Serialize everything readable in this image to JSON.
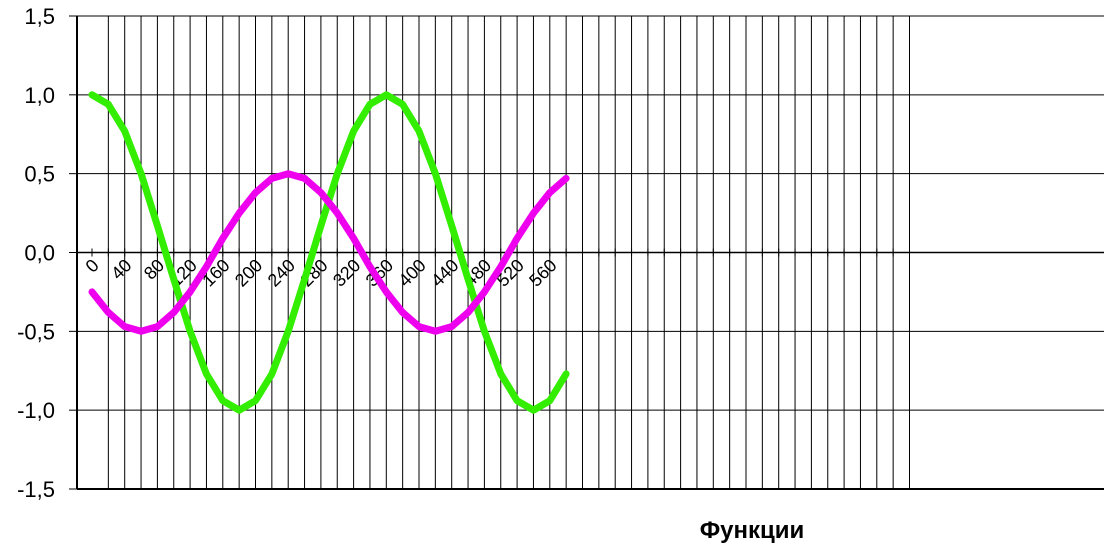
{
  "chart_data": {
    "type": "line",
    "title": "",
    "xlabel": "Функции",
    "ylabel": "",
    "xlim": [
      0,
      560
    ],
    "ylim": [
      -1.5,
      1.5
    ],
    "grid": true,
    "yticks": [
      "-1,5",
      "-1,0",
      "-0,5",
      "0,0",
      "0,5",
      "1,0",
      "1,5"
    ],
    "xticks": [
      "0",
      "40",
      "80",
      "120",
      "160",
      "200",
      "240",
      "280",
      "320",
      "360",
      "400",
      "440",
      "480",
      "520",
      "560"
    ],
    "x": [
      0,
      20,
      40,
      60,
      80,
      100,
      120,
      140,
      160,
      180,
      200,
      220,
      240,
      260,
      280,
      300,
      320,
      340,
      360,
      380,
      400,
      420,
      440,
      460,
      480,
      500,
      520,
      540,
      560,
      580
    ],
    "series": [
      {
        "color": "#33ee00",
        "values": [
          1.0,
          0.94,
          0.77,
          0.5,
          0.17,
          -0.17,
          -0.5,
          -0.77,
          -0.94,
          -1.0,
          -0.94,
          -0.77,
          -0.5,
          -0.17,
          0.17,
          0.5,
          0.77,
          0.94,
          1.0,
          0.94,
          0.77,
          0.5,
          0.17,
          -0.17,
          -0.5,
          -0.77,
          -0.94,
          -1.0,
          -0.94,
          -0.77
        ]
      },
      {
        "color": "#ee00ee",
        "values": [
          -0.25,
          -0.38,
          -0.47,
          -0.5,
          -0.47,
          -0.38,
          -0.25,
          -0.09,
          0.09,
          0.25,
          0.38,
          0.47,
          0.5,
          0.47,
          0.38,
          0.25,
          0.09,
          -0.09,
          -0.25,
          -0.38,
          -0.47,
          -0.5,
          -0.47,
          -0.38,
          -0.25,
          -0.09,
          0.09,
          0.25,
          0.38,
          0.47
        ]
      }
    ]
  }
}
